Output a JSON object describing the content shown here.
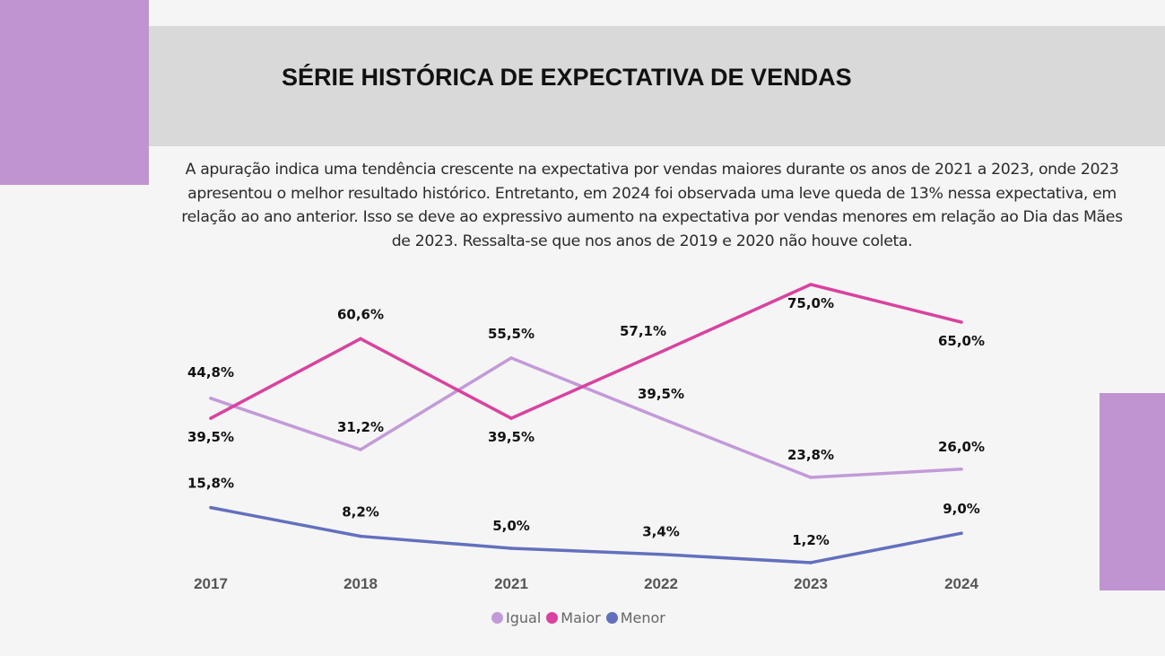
{
  "title": "SÉRIE HISTÓRICA DE EXPECTATIVA DE VENDAS",
  "description": "A apuração indica uma tendência crescente na expectativa por vendas maiores durante os anos de 2021 a 2023, onde 2023 apresentou o melhor resultado histórico. Entretanto, em 2024 foi observada uma leve queda de 13% nessa expectativa, em relação ao ano anterior. Isso se deve ao expressivo aumento na expectativa por vendas menores em relação ao Dia das Mães de 2023. Ressalta-se que nos anos de 2019 e 2020 não houve coleta.",
  "colors": {
    "accent_block": "#bf94d0",
    "title_band": "#d9d9d9",
    "background": "#f5f5f6"
  },
  "chart_data": {
    "type": "line",
    "title": "",
    "xlabel": "",
    "ylabel": "",
    "ylim": [
      0,
      80
    ],
    "grid": false,
    "legend_position": "bottom-center",
    "categories": [
      "2017",
      "2018",
      "2021",
      "2022",
      "2023",
      "2024"
    ],
    "series": [
      {
        "name": "Igual",
        "color": "#c39ad8",
        "values": [
          44.8,
          31.2,
          55.5,
          39.5,
          23.8,
          26.0
        ],
        "labels": [
          "44,8%",
          "31,2%",
          "55,5%",
          "39,5%",
          "23,8%",
          "26,0%"
        ]
      },
      {
        "name": "Maior",
        "color": "#d9429f",
        "values": [
          39.5,
          60.6,
          39.5,
          57.1,
          75.0,
          65.0
        ],
        "labels": [
          "39,5%",
          "60,6%",
          "39,5%",
          "57,1%",
          "75,0%",
          "65,0%"
        ]
      },
      {
        "name": "Menor",
        "color": "#6370bd",
        "values": [
          15.8,
          8.2,
          5.0,
          3.4,
          1.2,
          9.0
        ],
        "labels": [
          "15,8%",
          "8,2%",
          "5,0%",
          "3,4%",
          "1,2%",
          "9,0%"
        ]
      }
    ]
  }
}
